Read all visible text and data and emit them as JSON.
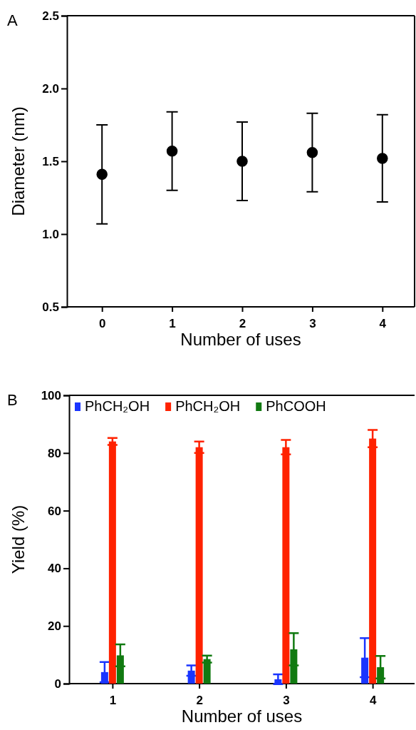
{
  "chart_data": [
    {
      "type": "scatter",
      "title": "A",
      "xlabel": "Number of uses",
      "ylabel": "Diameter (nm)",
      "categories": [
        "0",
        "1",
        "2",
        "3",
        "4"
      ],
      "series": [
        {
          "color": "#000000",
          "values": [
            1.41,
            1.57,
            1.5,
            1.56,
            1.52
          ],
          "errors": [
            [
              1.07,
              1.75
            ],
            [
              1.3,
              1.84
            ],
            [
              1.23,
              1.77
            ],
            [
              1.29,
              1.83
            ],
            [
              1.22,
              1.82
            ]
          ]
        }
      ],
      "ylim": [
        0.5,
        2.5
      ],
      "yticks": [
        0.5,
        {
          "value": 1,
          "label": "1.0"
        },
        1.5,
        {
          "value": 2,
          "label": "2.0"
        },
        2.5
      ],
      "marker": "circle",
      "grid": false,
      "legend": false
    },
    {
      "type": "bar",
      "title": "B",
      "xlabel": "Number of uses",
      "ylabel": "Yield (%)",
      "categories": [
        "1",
        "2",
        "3",
        "4"
      ],
      "series": [
        {
          "name": "PhCH₂OH",
          "color": "#1a35ff",
          "values": [
            4,
            4.5,
            1.5,
            9
          ],
          "errors": [
            3.5,
            1.8,
            1.7,
            6.8
          ]
        },
        {
          "name": "PhCH₂OH",
          "color": "#ff2200",
          "values": [
            84,
            82,
            82,
            85
          ],
          "errors": [
            1.2,
            2,
            2.5,
            3
          ]
        },
        {
          "name": "PhCOOH",
          "color": "#117a11",
          "values": [
            9.8,
            8.5,
            11.9,
            5.7
          ],
          "errors": [
            3.8,
            1.2,
            5.6,
            3.9
          ]
        }
      ],
      "ylim": [
        0,
        100
      ],
      "yticks": [
        0,
        20,
        40,
        60,
        80,
        100
      ],
      "grid": false,
      "legend": "top"
    }
  ]
}
